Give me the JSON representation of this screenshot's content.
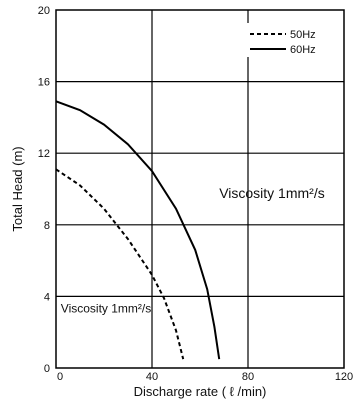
{
  "chart_data": {
    "type": "line",
    "xlabel": "Discharge rate ( ℓ /min)",
    "ylabel": "Total Head (m)",
    "xlim": [
      0,
      120
    ],
    "ylim": [
      0,
      20
    ],
    "xticks": [
      0,
      40,
      80,
      120
    ],
    "yticks": [
      0,
      4,
      8,
      12,
      16,
      20
    ],
    "grid": true,
    "legend": "top-right",
    "series": [
      {
        "name": "50Hz",
        "style": "dashed",
        "color": "#000000",
        "points": [
          [
            0,
            11.1
          ],
          [
            10,
            10.2
          ],
          [
            20,
            8.9
          ],
          [
            30,
            7.2
          ],
          [
            40,
            5.2
          ],
          [
            45,
            3.9
          ],
          [
            50,
            2.1
          ],
          [
            53,
            0.5
          ]
        ]
      },
      {
        "name": "60Hz",
        "style": "solid",
        "color": "#000000",
        "points": [
          [
            0,
            14.9
          ],
          [
            10,
            14.4
          ],
          [
            20,
            13.6
          ],
          [
            30,
            12.5
          ],
          [
            40,
            11.0
          ],
          [
            50,
            8.9
          ],
          [
            58,
            6.6
          ],
          [
            63,
            4.4
          ],
          [
            66,
            2.3
          ],
          [
            68,
            0.5
          ]
        ]
      }
    ],
    "annotations": [
      {
        "text": "Viscosity 1mm²/s",
        "x": 68,
        "y": 9.5,
        "size": 14
      },
      {
        "text": "Viscosity 1mm²/s",
        "x": 2,
        "y": 3.1,
        "size": 12
      }
    ]
  }
}
